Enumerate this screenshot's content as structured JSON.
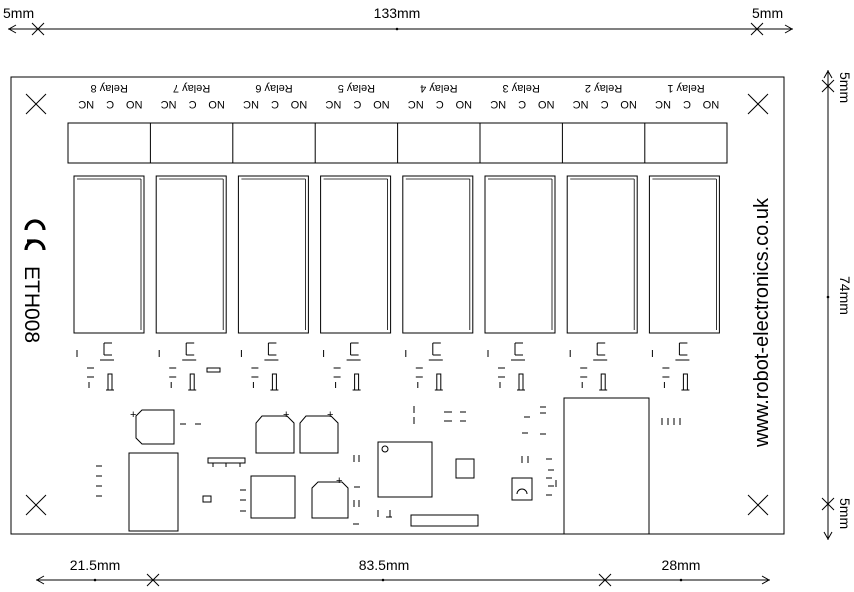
{
  "dimensions": {
    "top_left": "5mm",
    "top_center": "133mm",
    "top_right": "5mm",
    "right_top": "5mm",
    "right_middle": "74mm",
    "right_bottom": "5mm",
    "bottom_left": "21.5mm",
    "bottom_middle": "83.5mm",
    "bottom_right": "28mm"
  },
  "board": {
    "model": "ETH008",
    "website": "www.robot-electronics.co.uk",
    "ce_mark": "CE"
  },
  "relays": [
    {
      "name": "Relay 8",
      "pins": [
        "NC",
        "C",
        "NO"
      ]
    },
    {
      "name": "Relay 7",
      "pins": [
        "NC",
        "C",
        "NO"
      ]
    },
    {
      "name": "Relay 6",
      "pins": [
        "NC",
        "C",
        "NO"
      ]
    },
    {
      "name": "Relay 5",
      "pins": [
        "NC",
        "C",
        "NO"
      ]
    },
    {
      "name": "Relay 4",
      "pins": [
        "NC",
        "C",
        "NO"
      ]
    },
    {
      "name": "Relay 3",
      "pins": [
        "NC",
        "C",
        "NO"
      ]
    },
    {
      "name": "Relay 2",
      "pins": [
        "NC",
        "C",
        "NO"
      ]
    },
    {
      "name": "Relay 1",
      "pins": [
        "NC",
        "C",
        "NO"
      ]
    }
  ]
}
